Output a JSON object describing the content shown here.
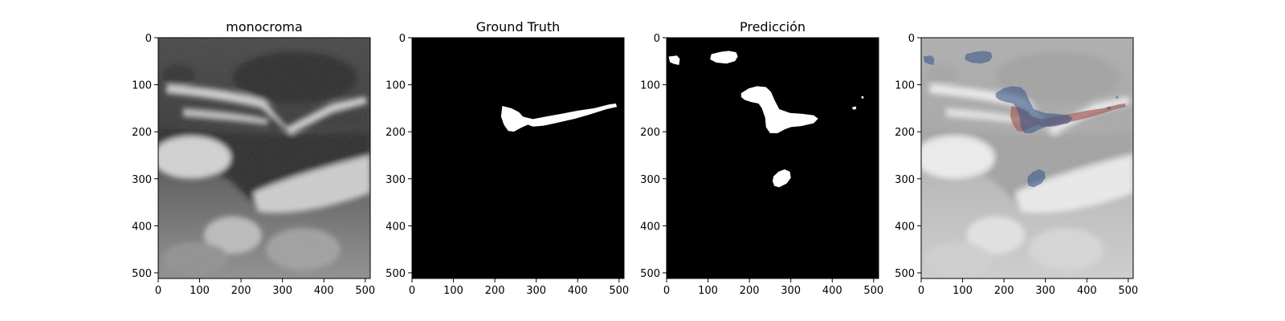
{
  "figure": {
    "panels": [
      {
        "title": "monocroma",
        "kind": "ultrasound"
      },
      {
        "title": "Ground Truth",
        "kind": "mask_ground_truth"
      },
      {
        "title": "Predicción",
        "kind": "mask_prediction"
      },
      {
        "title": "",
        "kind": "overlay"
      }
    ],
    "axes": {
      "xlim": [
        0,
        512
      ],
      "ylim": [
        0,
        512
      ],
      "x_ticks": [
        0,
        100,
        200,
        300,
        400,
        500
      ],
      "y_ticks": [
        0,
        100,
        200,
        300,
        400,
        500
      ]
    },
    "colors": {
      "mask_background": "#000000",
      "mask_foreground": "#ffffff",
      "overlay_ground_truth": "#a0605a",
      "overlay_prediction": "#3c5a8c"
    }
  }
}
